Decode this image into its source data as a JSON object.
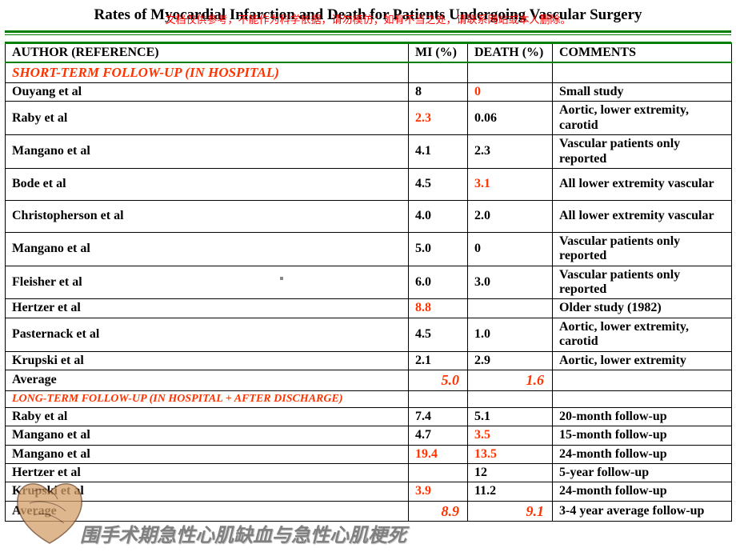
{
  "title": "Rates of Myocardial Infarction and Death for Patients Undergoing Vascular Surgery",
  "warning": "文档仅供参考，不能作为科学依据，请勿模仿；如有不当之处，请联系网站或本人删除。",
  "headers": {
    "author": "AUTHOR (REFERENCE)",
    "mi": "MI (%)",
    "death": "DEATH (%)",
    "comments": "COMMENTS"
  },
  "sections": {
    "short": "SHORT-TERM FOLLOW-UP (IN HOSPITAL)",
    "long": "LONG-TERM FOLLOW-UP (IN HOSPITAL + AFTER DISCHARGE)"
  },
  "short_rows": [
    {
      "author": "Ouyang et al",
      "mi": "8",
      "mi_red": false,
      "death": "0",
      "death_red": true,
      "comments": "Small study",
      "tall": false
    },
    {
      "author": "Raby et al",
      "mi": "2.3",
      "mi_red": true,
      "death": "0.06",
      "death_red": false,
      "comments": "Aortic, lower extremity, carotid",
      "tall": true
    },
    {
      "author": "Mangano et al",
      "mi": "4.1",
      "mi_red": false,
      "death": "2.3",
      "death_red": false,
      "comments": "Vascular patients only reported",
      "tall": true
    },
    {
      "author": "Bode et al",
      "mi": "4.5",
      "mi_red": false,
      "death": "3.1",
      "death_red": true,
      "comments": "All lower extremity vascular",
      "tall": true
    },
    {
      "author": "Christopherson et al",
      "mi": "4.0",
      "mi_red": false,
      "death": "2.0",
      "death_red": false,
      "comments": "All lower extremity vascular",
      "tall": true
    },
    {
      "author": "Mangano et al",
      "mi": "5.0",
      "mi_red": false,
      "death": "0",
      "death_red": false,
      "comments": "Vascular patients only reported",
      "tall": true
    },
    {
      "author": "Fleisher et al",
      "mi": "6.0",
      "mi_red": false,
      "death": "3.0",
      "death_red": false,
      "comments": "Vascular patients only reported",
      "tall": true
    },
    {
      "author": "Hertzer et al",
      "mi": "8.8",
      "mi_red": true,
      "death": "",
      "death_red": false,
      "comments": "Older study (1982)",
      "tall": false
    },
    {
      "author": "Pasternack et al",
      "mi": "4.5",
      "mi_red": false,
      "death": "1.0",
      "death_red": false,
      "comments": "Aortic, lower extremity, carotid",
      "tall": true
    },
    {
      "author": "Krupski et al",
      "mi": "2.1",
      "mi_red": false,
      "death": "2.9",
      "death_red": false,
      "comments": "Aortic, lower extremity",
      "tall": false
    }
  ],
  "short_avg": {
    "label": "Average",
    "mi": "5.0",
    "death": "1.6",
    "comments": ""
  },
  "long_rows": [
    {
      "author": "Raby et al",
      "mi": "7.4",
      "mi_red": false,
      "death": "5.1",
      "death_red": false,
      "comments": "20-month follow-up"
    },
    {
      "author": "Mangano et al",
      "mi": "4.7",
      "mi_red": false,
      "death": "3.5",
      "death_red": true,
      "comments": "15-month follow-up"
    },
    {
      "author": "Mangano et al",
      "mi": "19.4",
      "mi_red": true,
      "death": "13.5",
      "death_red": true,
      "comments": "24-month follow-up"
    },
    {
      "author": "Hertzer et al",
      "mi": "",
      "mi_red": false,
      "death": "12",
      "death_red": false,
      "comments": "5-year follow-up"
    },
    {
      "author": "Krupski et al",
      "mi": "3.9",
      "mi_red": true,
      "death": "11.2",
      "death_red": false,
      "comments": "24-month follow-up"
    }
  ],
  "long_avg": {
    "label": "Average",
    "mi": "8.9",
    "death": "9.1",
    "comments": "3-4 year average follow-up"
  },
  "footer_cn": "围手术期急性心肌缺血与急性心肌梗死",
  "colors": {
    "accent_green": "#008000",
    "accent_red": "#ff3300",
    "text": "#000000",
    "bg": "#ffffff",
    "footer_gray": "#808080"
  },
  "heart_svg": {
    "fill": "#d4a06a",
    "stroke": "#6b3f1f"
  }
}
